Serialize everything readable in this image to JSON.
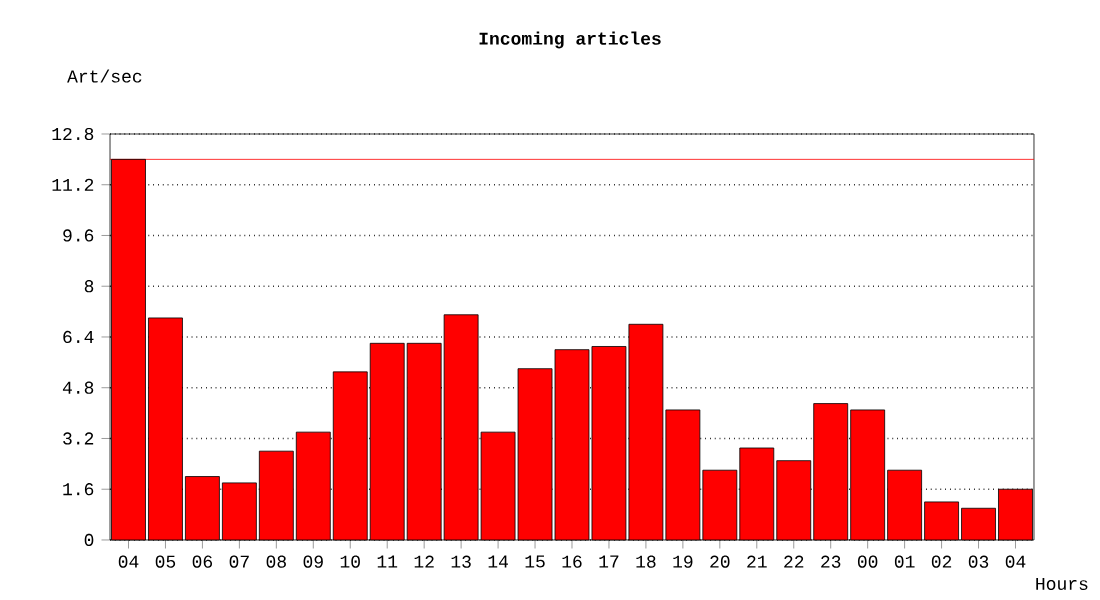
{
  "chart_data": {
    "type": "bar",
    "title": "Incoming articles",
    "ylabel": "Art/sec",
    "xlabel": "Hours",
    "categories": [
      "04",
      "05",
      "06",
      "07",
      "08",
      "09",
      "10",
      "11",
      "12",
      "13",
      "14",
      "15",
      "16",
      "17",
      "18",
      "19",
      "20",
      "21",
      "22",
      "23",
      "00",
      "01",
      "02",
      "03",
      "04"
    ],
    "values": [
      12.0,
      7.0,
      2.0,
      1.8,
      2.8,
      3.4,
      5.3,
      6.2,
      6.2,
      7.1,
      3.4,
      5.4,
      6.0,
      6.1,
      6.8,
      4.1,
      2.2,
      2.9,
      2.5,
      4.3,
      4.1,
      2.2,
      1.2,
      1.0,
      1.6
    ],
    "color": "#ff0000",
    "ylim": [
      0,
      12.8
    ],
    "yticks": [
      0,
      1.6,
      3.2,
      4.8,
      6.4,
      8,
      9.6,
      11.2,
      12.8
    ],
    "grid": "y",
    "ref_lines": [
      {
        "axis": "y",
        "value": 12.0,
        "color": "#ff0000",
        "line_style": "solid"
      }
    ]
  }
}
